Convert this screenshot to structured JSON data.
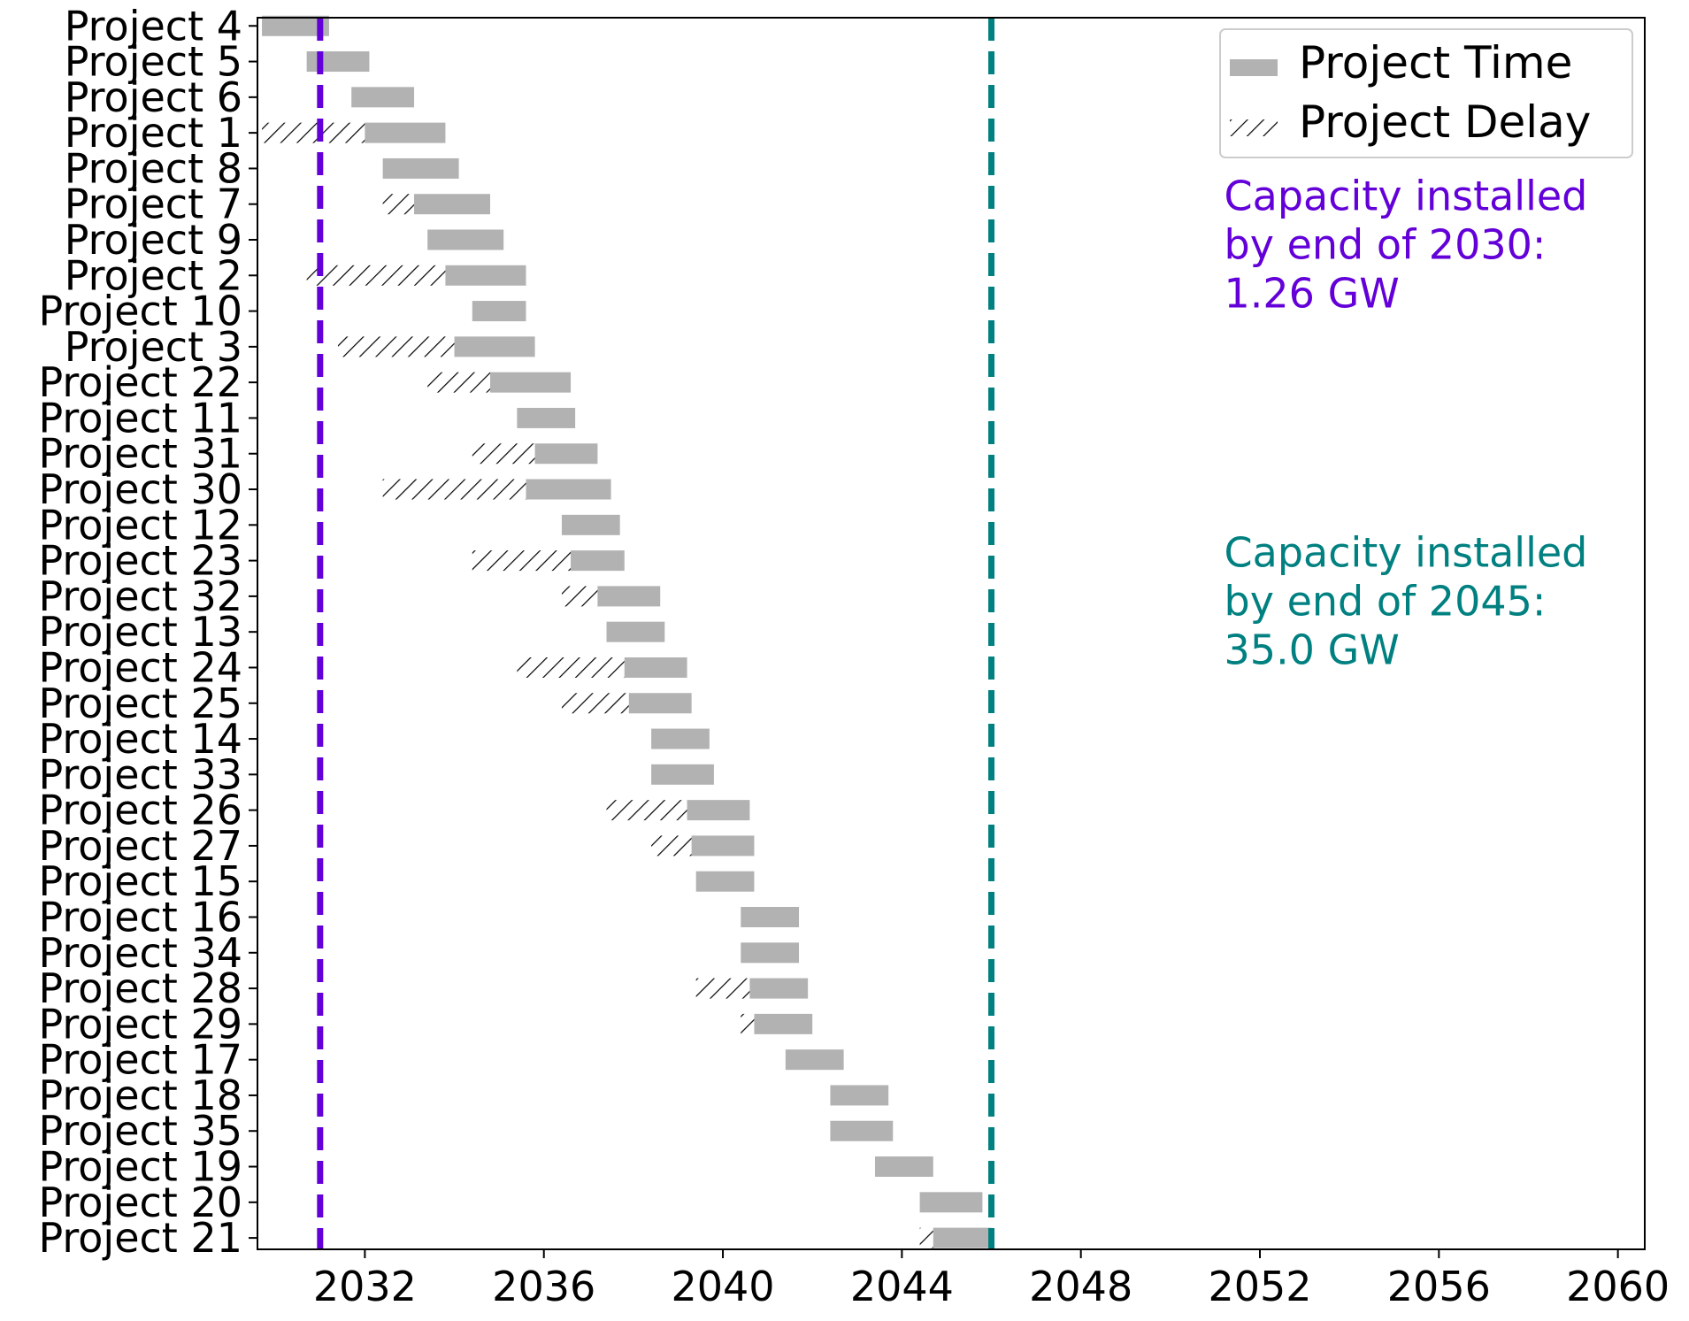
{
  "chart_data": {
    "type": "gantt",
    "title": "",
    "xlabel": "",
    "ylabel": "",
    "xlim": [
      2029.6,
      2060.6
    ],
    "xticks": [
      2032,
      2036,
      2040,
      2044,
      2048,
      2052,
      2056,
      2060
    ],
    "legend": {
      "placement": "top-right",
      "entries": [
        {
          "label": "Project Time",
          "style": "solid",
          "color": "#b2b2b2"
        },
        {
          "label": "Project Delay",
          "style": "hatched",
          "color": "#000000"
        }
      ]
    },
    "colors": {
      "project_time": "#b2b2b2",
      "delay_hatch": "#000000",
      "line_2030": "#6300d9",
      "line_2045": "#008080"
    },
    "reference_lines": [
      {
        "x": 2031.0,
        "color": "#6300d9",
        "style": "dashed"
      },
      {
        "x": 2046.0,
        "color": "#008080",
        "style": "dashed"
      }
    ],
    "annotations": [
      {
        "lines": [
          "Capacity installed",
          "by end of 2030:",
          "1.26 GW"
        ],
        "color": "#6300d9",
        "x": 2051.2,
        "y_row": 5.4
      },
      {
        "lines": [
          "Capacity installed",
          "by end of 2045:",
          "35.0 GW"
        ],
        "color": "#008080",
        "x": 2051.2,
        "y_row": 15.4
      }
    ],
    "projects": [
      {
        "name": "Project 4",
        "delay_start": null,
        "start": 2029.7,
        "end": 2031.2
      },
      {
        "name": "Project 5",
        "delay_start": null,
        "start": 2030.7,
        "end": 2032.1
      },
      {
        "name": "Project 6",
        "delay_start": null,
        "start": 2031.7,
        "end": 2033.1
      },
      {
        "name": "Project 1",
        "delay_start": 2029.7,
        "start": 2032.0,
        "end": 2033.8
      },
      {
        "name": "Project 8",
        "delay_start": null,
        "start": 2032.4,
        "end": 2034.1
      },
      {
        "name": "Project 7",
        "delay_start": 2032.4,
        "start": 2033.1,
        "end": 2034.8
      },
      {
        "name": "Project 9",
        "delay_start": null,
        "start": 2033.4,
        "end": 2035.1
      },
      {
        "name": "Project 2",
        "delay_start": 2030.7,
        "start": 2033.8,
        "end": 2035.6
      },
      {
        "name": "Project 10",
        "delay_start": null,
        "start": 2034.4,
        "end": 2035.6
      },
      {
        "name": "Project 3",
        "delay_start": 2031.4,
        "start": 2034.0,
        "end": 2035.8
      },
      {
        "name": "Project 22",
        "delay_start": 2033.4,
        "start": 2034.8,
        "end": 2036.6
      },
      {
        "name": "Project 11",
        "delay_start": null,
        "start": 2035.4,
        "end": 2036.7
      },
      {
        "name": "Project 31",
        "delay_start": 2034.4,
        "start": 2035.8,
        "end": 2037.2
      },
      {
        "name": "Project 30",
        "delay_start": 2032.4,
        "start": 2035.6,
        "end": 2037.5
      },
      {
        "name": "Project 12",
        "delay_start": null,
        "start": 2036.4,
        "end": 2037.7
      },
      {
        "name": "Project 23",
        "delay_start": 2034.4,
        "start": 2036.6,
        "end": 2037.8
      },
      {
        "name": "Project 32",
        "delay_start": 2036.4,
        "start": 2037.2,
        "end": 2038.6
      },
      {
        "name": "Project 13",
        "delay_start": null,
        "start": 2037.4,
        "end": 2038.7
      },
      {
        "name": "Project 24",
        "delay_start": 2035.4,
        "start": 2037.8,
        "end": 2039.2
      },
      {
        "name": "Project 25",
        "delay_start": 2036.4,
        "start": 2037.9,
        "end": 2039.3
      },
      {
        "name": "Project 14",
        "delay_start": null,
        "start": 2038.4,
        "end": 2039.7
      },
      {
        "name": "Project 33",
        "delay_start": null,
        "start": 2038.4,
        "end": 2039.8
      },
      {
        "name": "Project 26",
        "delay_start": 2037.4,
        "start": 2039.2,
        "end": 2040.6
      },
      {
        "name": "Project 27",
        "delay_start": 2038.4,
        "start": 2039.3,
        "end": 2040.7
      },
      {
        "name": "Project 15",
        "delay_start": null,
        "start": 2039.4,
        "end": 2040.7
      },
      {
        "name": "Project 16",
        "delay_start": null,
        "start": 2040.4,
        "end": 2041.7
      },
      {
        "name": "Project 34",
        "delay_start": null,
        "start": 2040.4,
        "end": 2041.7
      },
      {
        "name": "Project 28",
        "delay_start": 2039.4,
        "start": 2040.6,
        "end": 2041.9
      },
      {
        "name": "Project 29",
        "delay_start": 2040.4,
        "start": 2040.7,
        "end": 2042.0
      },
      {
        "name": "Project 17",
        "delay_start": null,
        "start": 2041.4,
        "end": 2042.7
      },
      {
        "name": "Project 18",
        "delay_start": null,
        "start": 2042.4,
        "end": 2043.7
      },
      {
        "name": "Project 35",
        "delay_start": null,
        "start": 2042.4,
        "end": 2043.8
      },
      {
        "name": "Project 19",
        "delay_start": null,
        "start": 2043.4,
        "end": 2044.7
      },
      {
        "name": "Project 20",
        "delay_start": null,
        "start": 2044.4,
        "end": 2045.8
      },
      {
        "name": "Project 21",
        "delay_start": 2044.4,
        "start": 2044.7,
        "end": 2046.0
      }
    ]
  }
}
